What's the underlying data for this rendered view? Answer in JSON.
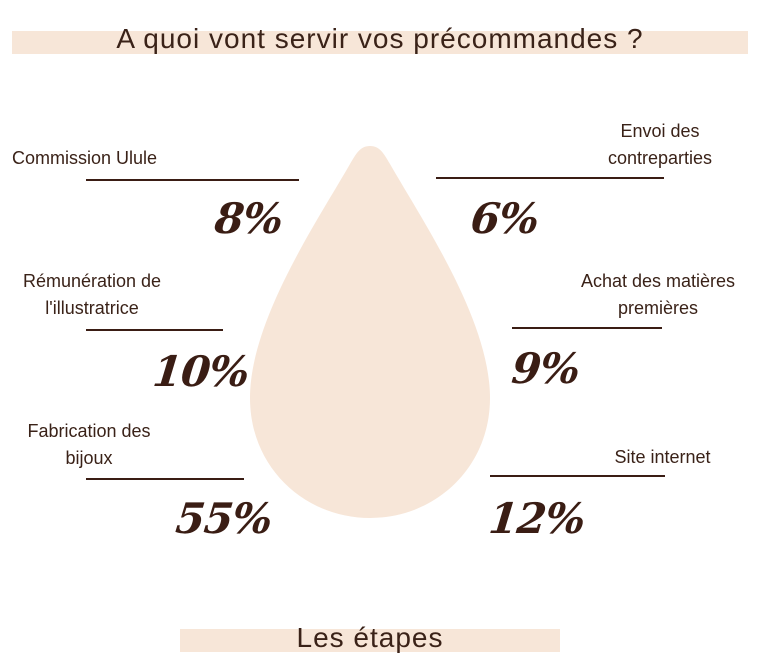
{
  "title": "A quoi vont servir vos précommandes ?",
  "subtitle": "Les étapes",
  "colors": {
    "band": "#f7e6d8",
    "drop": "#f7e6d8",
    "text": "#3a2218",
    "line": "#3a1d14"
  },
  "chart_data": {
    "type": "pie",
    "title": "A quoi vont servir vos précommandes ?",
    "unit": "%",
    "slices": [
      {
        "label_lines": [
          "Commission Ulule"
        ],
        "value": 8,
        "value_label": "8%"
      },
      {
        "label_lines": [
          "Envoi des",
          "contreparties"
        ],
        "value": 6,
        "value_label": "6%"
      },
      {
        "label_lines": [
          "Rémunération de",
          "l'illustratrice"
        ],
        "value": 10,
        "value_label": "10%"
      },
      {
        "label_lines": [
          "Achat des matières",
          "premières"
        ],
        "value": 9,
        "value_label": "9%"
      },
      {
        "label_lines": [
          "Fabrication des",
          "bijoux"
        ],
        "value": 55,
        "value_label": "55%"
      },
      {
        "label_lines": [
          "Site internet"
        ],
        "value": 12,
        "value_label": "12%"
      }
    ]
  }
}
